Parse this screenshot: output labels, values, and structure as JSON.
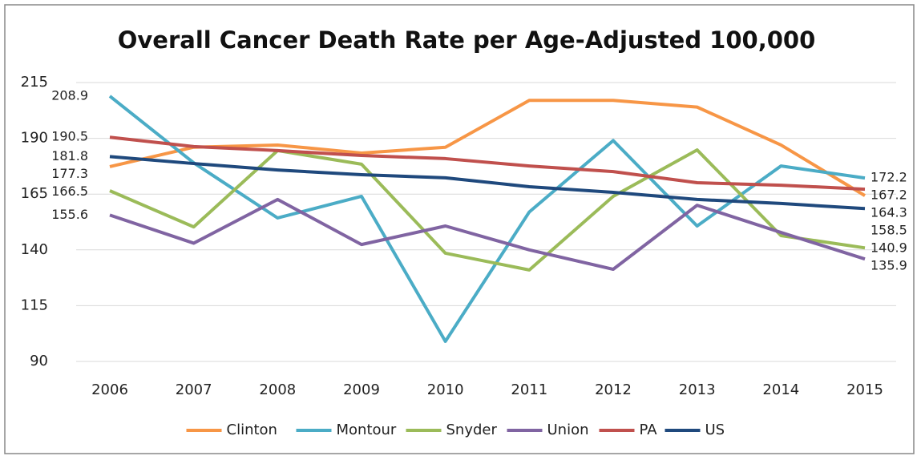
{
  "chart_data": {
    "type": "line",
    "title": "Overall Cancer Death Rate per Age-Adjusted 100,000",
    "categories": [
      "2006",
      "2007",
      "2008",
      "2009",
      "2010",
      "2011",
      "2012",
      "2013",
      "2014",
      "2015"
    ],
    "series": [
      {
        "name": "Clinton",
        "color": "#f79646",
        "values": [
          177.3,
          186,
          187,
          183.4,
          186,
          207,
          207,
          204,
          187,
          164.3
        ]
      },
      {
        "name": "Montour",
        "color": "#4bacc6",
        "values": [
          208.9,
          179,
          154.3,
          164,
          99,
          157,
          189,
          150.7,
          177.6,
          172.2
        ]
      },
      {
        "name": "Snyder",
        "color": "#9bbb59",
        "values": [
          166.5,
          150.3,
          184.5,
          178.4,
          138.5,
          131,
          164,
          184.8,
          146.4,
          140.9
        ]
      },
      {
        "name": "Union",
        "color": "#8064a2",
        "values": [
          155.6,
          143,
          162.6,
          142.4,
          150.7,
          140,
          131.3,
          160,
          147.8,
          135.9
        ]
      },
      {
        "name": "PA",
        "color": "#c0504d",
        "values": [
          190.5,
          186.3,
          184.5,
          182.3,
          180.9,
          177.6,
          175.1,
          170.1,
          169,
          167.2
        ]
      },
      {
        "name": "US",
        "color": "#1f497d",
        "values": [
          181.8,
          178.7,
          175.8,
          173.7,
          172.3,
          168.3,
          165.8,
          162.6,
          160.8,
          158.5
        ]
      }
    ],
    "ylim": [
      90,
      215
    ],
    "yticks": [
      90,
      115,
      140,
      165,
      190,
      215
    ],
    "grid": true,
    "legend": "bottom"
  }
}
